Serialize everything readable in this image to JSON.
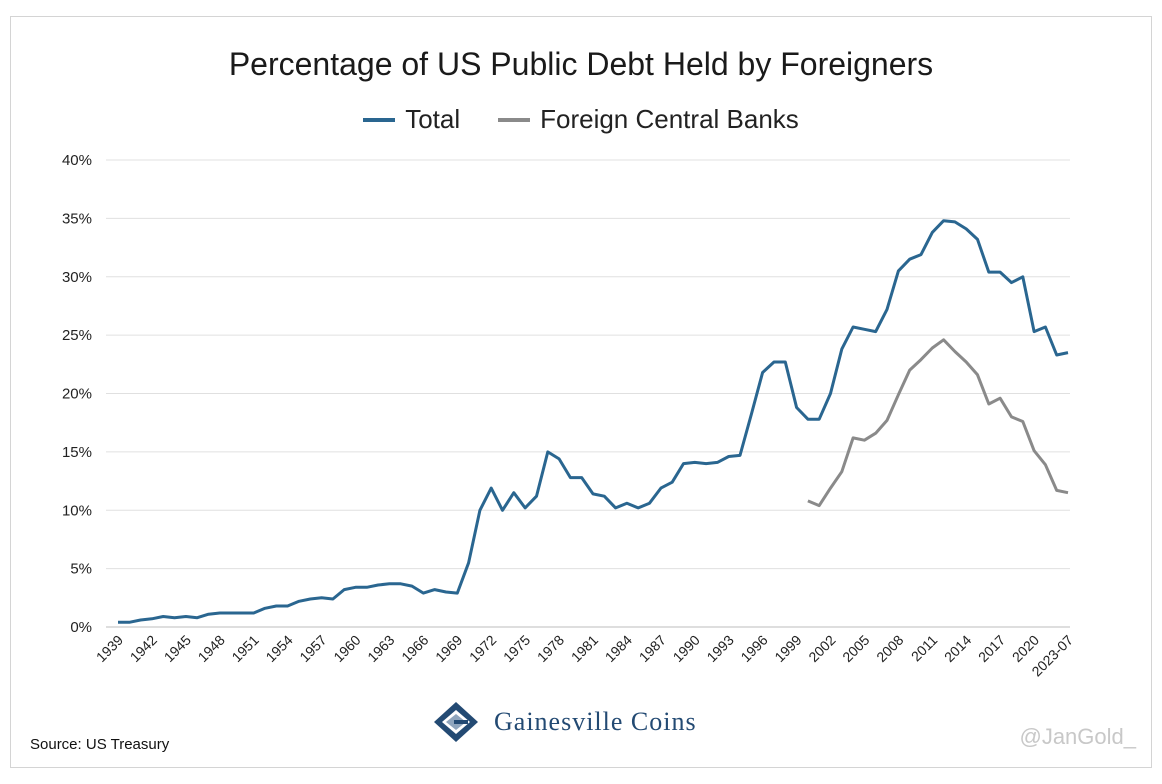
{
  "title": "Percentage of US Public Debt Held by Foreigners",
  "legend": [
    {
      "label": "Total",
      "color": "#2a6690"
    },
    {
      "label": "Foreign Central Banks",
      "color": "#8a8a8a"
    }
  ],
  "source": "Source: US Treasury",
  "watermark": "@JanGold_",
  "logo": {
    "text": "Gainesville Coins",
    "icon": "gainesville-coins-logo-icon"
  },
  "chart_data": {
    "type": "line",
    "title": "Percentage of US Public Debt Held by Foreigners",
    "xlabel": "",
    "ylabel": "",
    "ylim": [
      0,
      40
    ],
    "yticks": [
      "0%",
      "5%",
      "10%",
      "15%",
      "20%",
      "25%",
      "30%",
      "35%",
      "40%"
    ],
    "ytick_values": [
      0,
      5,
      10,
      15,
      20,
      25,
      30,
      35,
      40
    ],
    "xticks": [
      "1939",
      "1942",
      "1945",
      "1948",
      "1951",
      "1954",
      "1957",
      "1960",
      "1963",
      "1966",
      "1969",
      "1972",
      "1975",
      "1978",
      "1981",
      "1984",
      "1987",
      "1990",
      "1993",
      "1996",
      "1999",
      "2002",
      "2005",
      "2008",
      "2011",
      "2014",
      "2017",
      "2020",
      "2023-07"
    ],
    "grid": "horizontal",
    "legend_position": "top",
    "x": [
      "1939",
      "1940",
      "1941",
      "1942",
      "1943",
      "1944",
      "1945",
      "1946",
      "1947",
      "1948",
      "1949",
      "1950",
      "1951",
      "1952",
      "1953",
      "1954",
      "1955",
      "1956",
      "1957",
      "1958",
      "1959",
      "1960",
      "1961",
      "1962",
      "1963",
      "1964",
      "1965",
      "1966",
      "1967",
      "1968",
      "1969",
      "1970",
      "1971",
      "1972",
      "1973",
      "1974",
      "1975",
      "1976",
      "1977",
      "1978",
      "1979",
      "1980",
      "1981",
      "1982",
      "1983",
      "1984",
      "1985",
      "1986",
      "1987",
      "1988",
      "1989",
      "1990",
      "1991",
      "1992",
      "1993",
      "1994",
      "1995",
      "1996",
      "1997",
      "1998",
      "1999",
      "2000",
      "2001",
      "2002",
      "2003",
      "2004",
      "2005",
      "2006",
      "2007",
      "2008",
      "2009",
      "2010",
      "2011",
      "2012",
      "2013",
      "2014",
      "2015",
      "2016",
      "2017",
      "2018",
      "2019",
      "2020",
      "2021",
      "2022",
      "2023-07"
    ],
    "series": [
      {
        "name": "Total",
        "color": "#2a6690",
        "values": [
          0.4,
          0.4,
          0.6,
          0.7,
          0.9,
          0.8,
          0.9,
          0.8,
          1.1,
          1.2,
          1.2,
          1.2,
          1.2,
          1.6,
          1.8,
          1.8,
          2.2,
          2.4,
          2.5,
          2.4,
          3.2,
          3.4,
          3.4,
          3.6,
          3.7,
          3.7,
          3.5,
          2.9,
          3.2,
          3.0,
          2.9,
          5.5,
          10.0,
          11.9,
          10.0,
          11.5,
          10.2,
          11.2,
          15.0,
          14.4,
          12.8,
          12.8,
          11.4,
          11.2,
          10.2,
          10.6,
          10.2,
          10.6,
          11.9,
          12.4,
          14.0,
          14.1,
          14.0,
          14.1,
          14.6,
          14.7,
          18.2,
          21.8,
          22.7,
          22.7,
          18.8,
          17.8,
          17.8,
          20.0,
          23.8,
          25.7,
          25.5,
          25.3,
          27.2,
          30.5,
          31.5,
          31.9,
          33.8,
          34.8,
          34.7,
          34.1,
          33.2,
          30.4,
          30.4,
          29.5,
          30.0,
          25.3,
          25.7,
          23.3,
          23.5
        ]
      },
      {
        "name": "Foreign Central Banks",
        "color": "#8a8a8a",
        "values": [
          null,
          null,
          null,
          null,
          null,
          null,
          null,
          null,
          null,
          null,
          null,
          null,
          null,
          null,
          null,
          null,
          null,
          null,
          null,
          null,
          null,
          null,
          null,
          null,
          null,
          null,
          null,
          null,
          null,
          null,
          null,
          null,
          null,
          null,
          null,
          null,
          null,
          null,
          null,
          null,
          null,
          null,
          null,
          null,
          null,
          null,
          null,
          null,
          null,
          null,
          null,
          null,
          null,
          null,
          null,
          null,
          null,
          null,
          null,
          null,
          null,
          10.8,
          10.4,
          11.9,
          13.3,
          16.2,
          16.0,
          16.6,
          17.7,
          19.9,
          22.0,
          22.9,
          23.9,
          24.6,
          23.6,
          22.7,
          21.6,
          19.1,
          19.6,
          18.0,
          17.6,
          15.1,
          13.9,
          11.7,
          11.5
        ]
      }
    ]
  }
}
